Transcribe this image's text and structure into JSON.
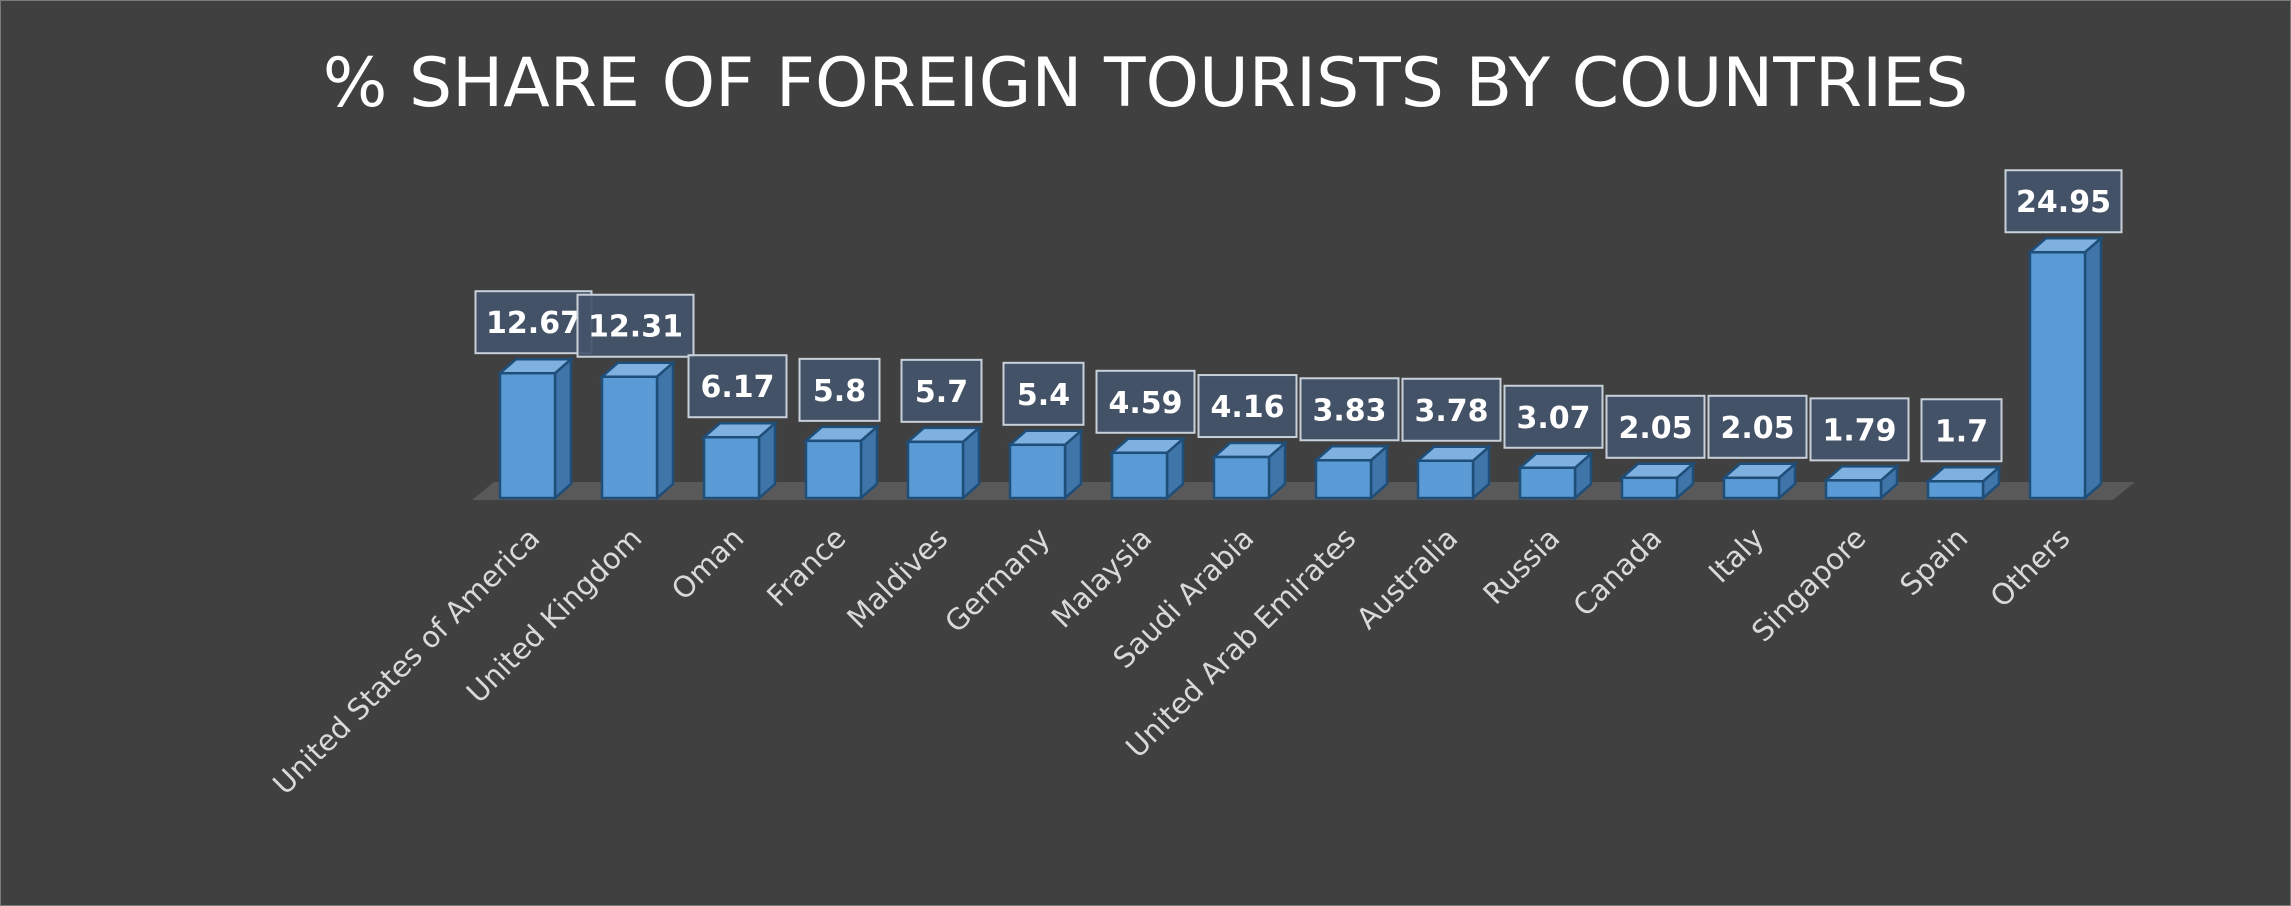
{
  "chart_data": {
    "type": "bar",
    "title": "% SHARE OF FOREIGN TOURISTS BY COUNTRIES",
    "categories": [
      "United States of America",
      "United Kingdom",
      "Oman",
      "France",
      "Maldives",
      "Germany",
      "Malaysia",
      "Saudi Arabia",
      "United Arab Emirates",
      "Australia",
      "Russia",
      "Canada",
      "Italy",
      "Singapore",
      "Spain",
      "Others"
    ],
    "values": [
      12.67,
      12.31,
      6.17,
      5.8,
      5.7,
      5.4,
      4.59,
      4.16,
      3.83,
      3.78,
      3.07,
      2.05,
      2.05,
      1.79,
      1.7,
      24.95
    ],
    "value_labels": [
      "12.67",
      "12.31",
      "6.17",
      "5.8",
      "5.7",
      "5.4",
      "4.59",
      "4.16",
      "3.83",
      "3.78",
      "3.07",
      "2.05",
      "2.05",
      "1.79",
      "1.7",
      "24.95"
    ],
    "xlabel": "",
    "ylabel": "",
    "ylim": [
      0,
      25
    ],
    "grid": false,
    "legend": "none",
    "style": "3d-column",
    "colors": {
      "background": "#404040",
      "bar_front": "#5b9bd5",
      "bar_side": "#3f75a8",
      "bar_top": "#7fb1e0",
      "bar_edge": "#1f4e79",
      "label_box": "#44546a",
      "label_box_border": "#c8d0da",
      "floor": "#595959",
      "title": "#ffffff",
      "category_text": "#d9d9d9"
    }
  }
}
